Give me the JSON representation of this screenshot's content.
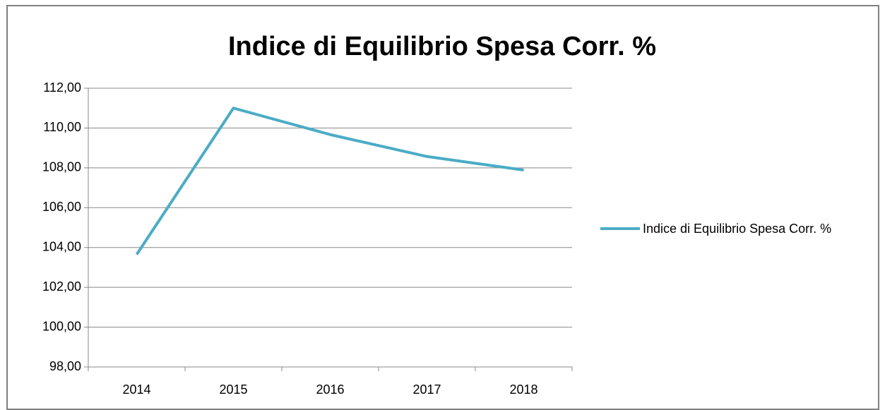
{
  "chart_data": {
    "type": "line",
    "title": "Indice di Equilibrio Spesa Corr. %",
    "categories": [
      "2014",
      "2015",
      "2016",
      "2017",
      "2018"
    ],
    "series": [
      {
        "name": "Indice di Equilibrio Spesa Corr. %",
        "color": "#4bacc6",
        "values": [
          103.65,
          111.0,
          109.67,
          108.57,
          107.89
        ]
      }
    ],
    "ylim": [
      98,
      112
    ],
    "yticks": [
      {
        "value": 98,
        "label": "98,00"
      },
      {
        "value": 100,
        "label": "100,00"
      },
      {
        "value": 102,
        "label": "102,00"
      },
      {
        "value": 104,
        "label": "104,00"
      },
      {
        "value": 106,
        "label": "106,00"
      },
      {
        "value": 108,
        "label": "108,00"
      },
      {
        "value": 110,
        "label": "110,00"
      },
      {
        "value": 112,
        "label": "112,00"
      }
    ],
    "grid": true,
    "legend": "right"
  }
}
